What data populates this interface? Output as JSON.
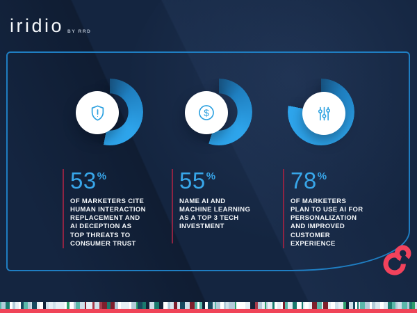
{
  "header": {
    "logo": "iridio",
    "logo_suffix": "BY RRD"
  },
  "stats": [
    {
      "value": "53",
      "unit": "%",
      "icon": "shield-alert-icon",
      "description": "OF MARKETERS CITE\nHUMAN INTERACTION\nREPLACEMENT AND\nAI DECEPTION AS\nTOP THREATS TO\nCONSUMER TRUST"
    },
    {
      "value": "55",
      "unit": "%",
      "icon": "dollar-circle-icon",
      "description": "NAME AI AND\nMACHINE LEARNING\nAS A TOP 3 TECH\nINVESTMENT"
    },
    {
      "value": "78",
      "unit": "%",
      "icon": "sliders-icon",
      "description": "OF MARKETERS\nPLAN TO USE AI FOR\nPERSONALIZATION\nAND IMPROVED\nCUSTOMER\nEXPERIENCE"
    }
  ],
  "chart_data": {
    "type": "pie",
    "style": "donut",
    "start_angle": "top",
    "direction": "clockwise",
    "charts": [
      {
        "value": 53,
        "unit": "%",
        "label": "marketers cite human interaction replacement and AI deception as top threats to consumer trust"
      },
      {
        "value": 55,
        "unit": "%",
        "label": "name AI and machine learning as a top 3 tech investment"
      },
      {
        "value": 78,
        "unit": "%",
        "label": "marketers plan to use AI for personalization and improved customer experience"
      }
    ]
  },
  "colors": {
    "background": "#142540",
    "frame_border": "#1f7ec2",
    "arc_dark": "#16517e",
    "arc_mid": "#1f7fc0",
    "arc_bright": "#2ea5ec",
    "percent_text": "#38a6e9",
    "red_accent_line": "#8e2443",
    "bottom_bar_red": "#f04458",
    "rrd_mark_red": "#f2425c",
    "icon_stroke": "#2aa0e0"
  },
  "footer": {
    "barcode_palette": [
      "#ffffff",
      "#e6eff5",
      "#cfe0ea",
      "#b3cbd9",
      "#1b7a6e",
      "#17495f",
      "#7e1f2d",
      "#2e9e6b",
      "#132238",
      "#a43b4b",
      "#d9e7ef",
      "#5bb8aa"
    ],
    "bar_color": "#f04458"
  }
}
